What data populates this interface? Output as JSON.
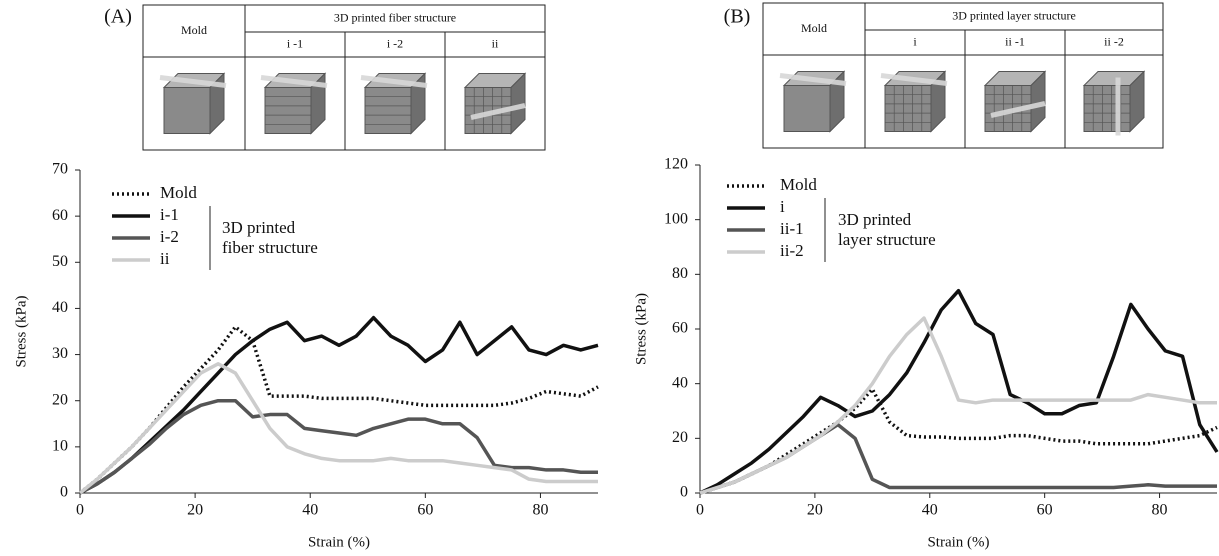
{
  "chart_data": [
    {
      "type": "line",
      "panel_label": "(A)",
      "table": {
        "header": [
          "Mold",
          "3D printed fiber structure"
        ],
        "subheaders": [
          "i -1",
          "i -2",
          "ii"
        ]
      },
      "x_label": "Strain (%)",
      "y_label": "Stress (kPa)",
      "legend_group": [
        "3D printed",
        "fiber structure"
      ],
      "x": [
        0,
        3,
        6,
        9,
        12,
        15,
        18,
        21,
        24,
        27,
        30,
        33,
        36,
        39,
        42,
        45,
        48,
        51,
        54,
        57,
        60,
        63,
        66,
        69,
        72,
        75,
        78,
        81,
        84,
        87,
        90
      ],
      "series": [
        {
          "name": "Mold",
          "color": "#111111",
          "dash": "dotted",
          "values": [
            0,
            3,
            6.5,
            10,
            14,
            18.5,
            23,
            27,
            31,
            36,
            33,
            21,
            21,
            21,
            20.5,
            20.5,
            20.5,
            20.5,
            20,
            19.5,
            19,
            19,
            19,
            19,
            19,
            19.5,
            20.5,
            22,
            21.5,
            21,
            23
          ]
        },
        {
          "name": "i-1",
          "color": "#111111",
          "values": [
            0,
            2,
            4.5,
            7.5,
            11,
            14.5,
            18,
            22,
            26,
            30,
            33,
            35.5,
            37,
            33,
            34,
            32,
            34,
            38,
            34,
            32,
            28.5,
            31,
            37,
            30,
            33,
            36,
            31,
            30,
            32,
            31,
            32
          ]
        },
        {
          "name": "i-2",
          "color": "#555555",
          "values": [
            0,
            2,
            4.5,
            7.5,
            10.5,
            14,
            17,
            19,
            20,
            20,
            16.5,
            17,
            17,
            14,
            13.5,
            13,
            12.5,
            14,
            15,
            16,
            16,
            15,
            15,
            12,
            6,
            5.5,
            5.5,
            5,
            5,
            4.5,
            4.5
          ]
        },
        {
          "name": "ii",
          "color": "#cccccc",
          "values": [
            0,
            3,
            6.5,
            10,
            14,
            18,
            22,
            26,
            28,
            26,
            20,
            14,
            10,
            8.5,
            7.5,
            7,
            7,
            7,
            7.5,
            7,
            7,
            7,
            6.5,
            6,
            5.5,
            5,
            3,
            2.5,
            2.5,
            2.5,
            2.5
          ]
        }
      ],
      "xlim": [
        0,
        90
      ],
      "xticks": [
        0,
        20,
        40,
        60,
        80
      ],
      "ylim": [
        0,
        70
      ],
      "yticks": [
        0,
        10,
        20,
        30,
        40,
        50,
        60,
        70
      ]
    },
    {
      "type": "line",
      "panel_label": "(B)",
      "table": {
        "header": [
          "Mold",
          "3D printed layer structure"
        ],
        "subheaders": [
          "i",
          "ii -1",
          "ii -2"
        ]
      },
      "x_label": "Strain (%)",
      "y_label": "Stress (kPa)",
      "legend_group": [
        "3D printed",
        "layer structure"
      ],
      "x": [
        0,
        3,
        6,
        9,
        12,
        15,
        18,
        21,
        24,
        27,
        30,
        33,
        36,
        39,
        42,
        45,
        48,
        51,
        54,
        57,
        60,
        63,
        66,
        69,
        72,
        75,
        78,
        81,
        84,
        87,
        90
      ],
      "series": [
        {
          "name": "Mold",
          "color": "#111111",
          "dash": "dotted",
          "values": [
            0,
            2,
            4,
            7,
            10,
            14,
            18,
            22,
            26,
            31,
            38,
            26,
            21,
            20.5,
            20.5,
            20,
            20,
            20,
            21,
            21,
            20,
            19,
            19,
            18,
            18,
            18,
            18,
            19,
            20,
            21,
            24
          ]
        },
        {
          "name": "i",
          "color": "#111111",
          "values": [
            0,
            3,
            7,
            11,
            16,
            22,
            28,
            35,
            32,
            28,
            30,
            36,
            44,
            55,
            67,
            74,
            62,
            58,
            36,
            33,
            29,
            29,
            32,
            33,
            50,
            69,
            60,
            52,
            50,
            25,
            15
          ]
        },
        {
          "name": "ii-1",
          "color": "#555555",
          "values": [
            0,
            2,
            4,
            7,
            10,
            13,
            17,
            21,
            25,
            20,
            5,
            2,
            2,
            2,
            2,
            2,
            2,
            2,
            2,
            2,
            2,
            2,
            2,
            2,
            2,
            2.5,
            3,
            2.5,
            2.5,
            2.5,
            2.5
          ]
        },
        {
          "name": "ii-2",
          "color": "#cccccc",
          "values": [
            0,
            2,
            4,
            7,
            10,
            13,
            17,
            21,
            26,
            32,
            40,
            50,
            58,
            64,
            50,
            34,
            33,
            34,
            34,
            34,
            34,
            34,
            34,
            34,
            34,
            34,
            36,
            35,
            34,
            33,
            33
          ]
        }
      ],
      "xlim": [
        0,
        90
      ],
      "xticks": [
        0,
        20,
        40,
        60,
        80
      ],
      "ylim": [
        0,
        120
      ],
      "yticks": [
        0,
        20,
        40,
        60,
        80,
        100,
        120
      ]
    }
  ]
}
